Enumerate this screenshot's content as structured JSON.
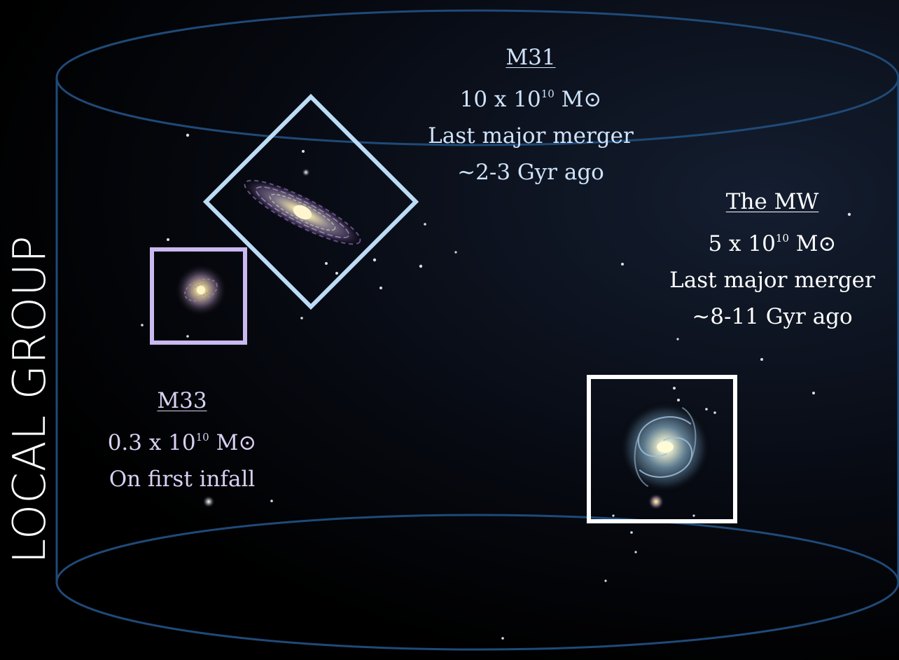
{
  "title": "LOCAL GROUP",
  "galaxies": {
    "m31": {
      "name": "M31",
      "mass_base": "10 x 10",
      "mass_exp": "10",
      "mass_unit": "M⊙",
      "line3": "Last major merger",
      "line4": "~2-3 Gyr ago",
      "frame_color": "#bcdcf6"
    },
    "mw": {
      "name": "The MW",
      "mass_base": "5 x 10",
      "mass_exp": "10",
      "mass_unit": "M⊙",
      "line3": "Last major merger",
      "line4": "~8-11 Gyr ago",
      "frame_color": "#ffffff"
    },
    "m33": {
      "name": "M33",
      "mass_base": "0.3 x 10",
      "mass_exp": "10",
      "mass_unit": "M⊙",
      "line3": "On first infall",
      "frame_color": "#c9b9f0"
    }
  },
  "colors": {
    "cylinder": "#1f4a78",
    "background": "#000000"
  }
}
